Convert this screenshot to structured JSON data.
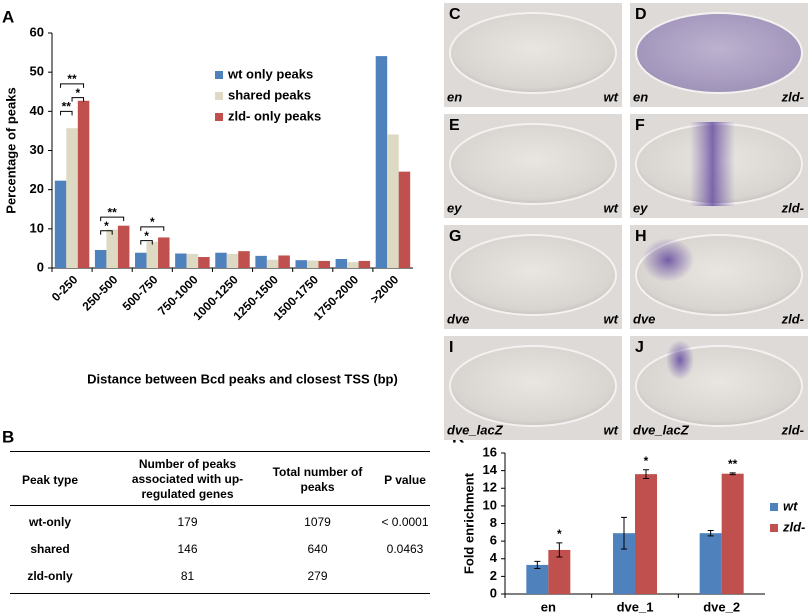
{
  "chart_data": [
    {
      "type": "bar",
      "panel": "A",
      "ylabel": "Percentage of peaks",
      "xlabel": "Distance between Bcd peaks and closest TSS (bp)",
      "categories": [
        "0-250",
        "250-500",
        "500-750",
        "750-1000",
        "1000-1250",
        "1250-1500",
        "1500-1750",
        "1750-2000",
        ">2000"
      ],
      "series": [
        {
          "name": "wt only peaks",
          "color": "#4f81bd",
          "values": [
            22.3,
            4.6,
            3.9,
            3.7,
            3.9,
            3.1,
            2.0,
            2.3,
            54.1
          ]
        },
        {
          "name": "shared peaks",
          "color": "#ddd9c3",
          "values": [
            35.7,
            9.8,
            6.7,
            3.6,
            3.6,
            2.1,
            1.9,
            1.5,
            34.1
          ]
        },
        {
          "name": "zld- only peaks",
          "color": "#c0504d",
          "values": [
            42.7,
            10.8,
            7.8,
            2.8,
            4.3,
            3.2,
            1.8,
            1.8,
            24.6
          ]
        }
      ],
      "ylim": [
        0,
        60
      ],
      "yticks": [
        0,
        10,
        20,
        30,
        40,
        50,
        60
      ],
      "annotations": [
        "**",
        "*",
        "**",
        "**",
        "*",
        "*",
        "*"
      ]
    },
    {
      "type": "bar",
      "panel": "K",
      "ylabel": "Fold enrichment",
      "categories": [
        "en",
        "dve_1",
        "dve_2"
      ],
      "series": [
        {
          "name": "wt",
          "color": "#4f81bd",
          "values": [
            3.3,
            6.9,
            6.9
          ],
          "errors": [
            0.4,
            1.8,
            0.3
          ]
        },
        {
          "name": "zld-",
          "color": "#c0504d",
          "values": [
            5.0,
            13.6,
            13.65
          ],
          "errors": [
            0.8,
            0.5,
            0.1
          ]
        }
      ],
      "ylim": [
        0,
        16
      ],
      "yticks": [
        0,
        2,
        4,
        6,
        8,
        10,
        12,
        14,
        16
      ],
      "annotations": [
        "*",
        "*",
        "**"
      ]
    }
  ],
  "images": [
    {
      "panel": "C",
      "gene": "en",
      "genotype": "wt"
    },
    {
      "panel": "D",
      "gene": "en",
      "genotype": "zld-"
    },
    {
      "panel": "E",
      "gene": "ey",
      "genotype": "wt"
    },
    {
      "panel": "F",
      "gene": "ey",
      "genotype": "zld-"
    },
    {
      "panel": "G",
      "gene": "dve",
      "genotype": "wt"
    },
    {
      "panel": "H",
      "gene": "dve",
      "genotype": "zld-"
    },
    {
      "panel": "I",
      "gene": "dve_lacZ",
      "genotype": "wt"
    },
    {
      "panel": "J",
      "gene": "dve_lacZ",
      "genotype": "zld-"
    }
  ],
  "table": {
    "panel": "B",
    "header": [
      "Peak type",
      "Number of peaks associated with up-regulated genes",
      "Total number of peaks",
      "P value"
    ],
    "rows": [
      [
        "wt-only",
        "179",
        "1079",
        "< 0.0001"
      ],
      [
        "shared",
        "146",
        "640",
        "0.0463"
      ],
      [
        "zld-only",
        "81",
        "279"
      ]
    ]
  }
}
